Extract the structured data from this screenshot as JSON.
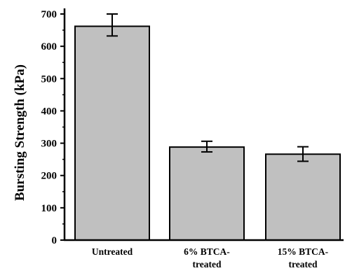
{
  "chart_data": {
    "type": "bar",
    "title": "",
    "xlabel": "",
    "ylabel": "Bursting Strength (kPa)",
    "ylim": [
      0,
      700
    ],
    "yticks": [
      "0",
      "100",
      "200",
      "300",
      "400",
      "500",
      "600",
      "700"
    ],
    "categories": [
      [
        "Untreated"
      ],
      [
        "6% BTCA-",
        "treated"
      ],
      [
        "15% BTCA-",
        "treated"
      ]
    ],
    "values": [
      662,
      288,
      266
    ],
    "error_low": [
      632,
      273,
      244
    ],
    "error_high": [
      700,
      306,
      289
    ],
    "bar_color": "#c0c0c0",
    "bar_edge_color": "#000000",
    "grid": false,
    "legend": "none"
  }
}
